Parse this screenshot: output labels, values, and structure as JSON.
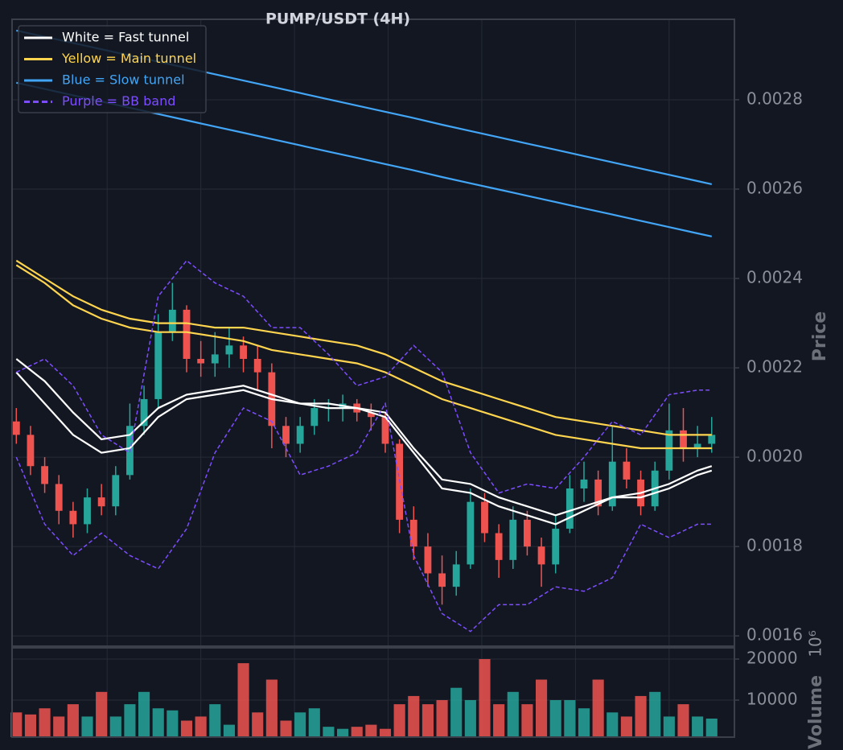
{
  "chart_data": {
    "type": "candlestick",
    "title": "PUMP/USDT (4H)",
    "ylabel": "Price",
    "grid": true,
    "legend": "upper left",
    "up_color": "#26a69a",
    "down_color": "#ef5350",
    "xlim": [
      -0.3,
      50.6
    ],
    "xticks": [
      6.4,
      13,
      19.6,
      26.2,
      32.8,
      39.4,
      46
    ],
    "ylim": [
      0.001577,
      0.00298
    ],
    "yticks": [
      0.0016,
      0.0018,
      {
        "value": 0.002,
        "label": "0.0020"
      },
      0.0022,
      0.0024,
      0.0026,
      0.0028
    ],
    "open": [
      0.00208,
      0.00205,
      0.00198,
      0.00194,
      0.00188,
      0.00185,
      0.00191,
      0.00189,
      0.00196,
      0.00207,
      0.00213,
      0.00228,
      0.00233,
      0.00222,
      0.00221,
      0.00223,
      0.00225,
      0.00222,
      0.00219,
      0.00207,
      0.00203,
      0.00207,
      0.00211,
      0.00211,
      0.00212,
      0.0021,
      0.00209,
      0.00203,
      0.00186,
      0.0018,
      0.00174,
      0.00171,
      0.00176,
      0.0019,
      0.00183,
      0.00177,
      0.00186,
      0.0018,
      0.00176,
      0.00184,
      0.00193,
      0.00195,
      0.00189,
      0.00199,
      0.00195,
      0.00189,
      0.00197,
      0.00206,
      0.00202,
      0.00203
    ],
    "high": [
      0.00211,
      0.00207,
      0.002,
      0.00196,
      0.0019,
      0.00193,
      0.00194,
      0.00198,
      0.00212,
      0.00216,
      0.00232,
      0.00239,
      0.00234,
      0.00226,
      0.00228,
      0.00229,
      0.00227,
      0.00225,
      0.00221,
      0.00209,
      0.00209,
      0.00213,
      0.00213,
      0.00214,
      0.00213,
      0.00212,
      0.0021,
      0.00204,
      0.00189,
      0.00183,
      0.00178,
      0.00179,
      0.00193,
      0.00192,
      0.00185,
      0.00189,
      0.00188,
      0.00182,
      0.00187,
      0.00196,
      0.00199,
      0.00197,
      0.00207,
      0.00202,
      0.00197,
      0.00199,
      0.00212,
      0.00211,
      0.00207,
      0.00209
    ],
    "low": [
      0.00203,
      0.00196,
      0.00192,
      0.00185,
      0.00182,
      0.00183,
      0.00187,
      0.00187,
      0.00195,
      0.00205,
      0.00211,
      0.00226,
      0.00219,
      0.00218,
      0.00218,
      0.0022,
      0.00219,
      0.00215,
      0.00202,
      0.002,
      0.00201,
      0.00205,
      0.00208,
      0.00208,
      0.00208,
      0.00206,
      0.00201,
      0.00183,
      0.00177,
      0.00171,
      0.00167,
      0.00169,
      0.00175,
      0.00181,
      0.00173,
      0.00175,
      0.00178,
      0.00171,
      0.00174,
      0.00183,
      0.0019,
      0.00187,
      0.00188,
      0.00193,
      0.00187,
      0.00188,
      0.00195,
      0.00199,
      0.002,
      0.00201
    ],
    "close": [
      0.00205,
      0.00198,
      0.00194,
      0.00188,
      0.00185,
      0.00191,
      0.00189,
      0.00196,
      0.00207,
      0.00213,
      0.00228,
      0.00233,
      0.00222,
      0.00221,
      0.00223,
      0.00225,
      0.00222,
      0.00219,
      0.00207,
      0.00203,
      0.00207,
      0.00211,
      0.00211,
      0.00212,
      0.0021,
      0.00209,
      0.00203,
      0.00186,
      0.0018,
      0.00174,
      0.00171,
      0.00176,
      0.0019,
      0.00183,
      0.00177,
      0.00186,
      0.0018,
      0.00176,
      0.00184,
      0.00193,
      0.00195,
      0.00189,
      0.00199,
      0.00195,
      0.00189,
      0.00197,
      0.00206,
      0.00202,
      0.00203,
      0.00205
    ],
    "line_x": [
      0,
      2,
      4,
      6,
      8,
      10,
      12,
      14,
      16,
      18,
      20,
      22,
      24,
      26,
      28,
      30,
      32,
      34,
      36,
      38,
      40,
      42,
      44,
      46,
      48,
      49
    ],
    "series": [
      {
        "name": "White = Fast tunnel",
        "color": "#ffffff",
        "dashed": false,
        "upper": [
          0.00222,
          0.00217,
          0.0021,
          0.00204,
          0.00205,
          0.00211,
          0.00214,
          0.00215,
          0.00216,
          0.00214,
          0.00212,
          0.00212,
          0.00211,
          0.0021,
          0.00202,
          0.00195,
          0.00194,
          0.00191,
          0.00189,
          0.00187,
          0.00189,
          0.00191,
          0.00192,
          0.00194,
          0.00197,
          0.00198
        ],
        "lower": [
          0.00219,
          0.00212,
          0.00205,
          0.00201,
          0.00202,
          0.00209,
          0.00213,
          0.00214,
          0.00215,
          0.00213,
          0.00212,
          0.00211,
          0.00211,
          0.00209,
          0.00201,
          0.00193,
          0.00192,
          0.00189,
          0.00187,
          0.00185,
          0.00188,
          0.00191,
          0.00191,
          0.00193,
          0.00196,
          0.00197
        ]
      },
      {
        "name": "Yellow = Main tunnel",
        "color": "#ffd54f",
        "dashed": false,
        "upper": [
          0.00244,
          0.0024,
          0.00236,
          0.00233,
          0.00231,
          0.0023,
          0.0023,
          0.00229,
          0.00229,
          0.00228,
          0.00227,
          0.00226,
          0.00225,
          0.00223,
          0.0022,
          0.00217,
          0.00215,
          0.00213,
          0.00211,
          0.00209,
          0.00208,
          0.00207,
          0.00206,
          0.00205,
          0.00205,
          0.00205
        ],
        "lower": [
          0.00243,
          0.00239,
          0.00234,
          0.00231,
          0.00229,
          0.00228,
          0.00228,
          0.00227,
          0.00226,
          0.00224,
          0.00223,
          0.00222,
          0.00221,
          0.00219,
          0.00216,
          0.00213,
          0.00211,
          0.00209,
          0.00207,
          0.00205,
          0.00204,
          0.00203,
          0.00202,
          0.00202,
          0.00202,
          0.00202
        ]
      },
      {
        "name": "Blue = Slow tunnel",
        "color": "#42a5f5",
        "dashed": false,
        "upper": [
          0.002955,
          0.002941,
          0.002927,
          0.002913,
          0.002899,
          0.002885,
          0.002871,
          0.002857,
          0.002843,
          0.002829,
          0.002815,
          0.002801,
          0.002787,
          0.002773,
          0.002759,
          0.002744,
          0.00273,
          0.002716,
          0.002702,
          0.002688,
          0.002674,
          0.00266,
          0.002646,
          0.002632,
          0.002618,
          0.002611
        ],
        "lower": [
          0.002838,
          0.002824,
          0.00281,
          0.002796,
          0.002782,
          0.002768,
          0.002754,
          0.00274,
          0.002726,
          0.002712,
          0.002698,
          0.002684,
          0.00267,
          0.002656,
          0.002642,
          0.002627,
          0.002613,
          0.002599,
          0.002585,
          0.002571,
          0.002557,
          0.002543,
          0.002529,
          0.002515,
          0.002501,
          0.002494
        ]
      },
      {
        "name": "Purple = BB band",
        "color": "#7c4dff",
        "dashed": true,
        "upper": [
          0.00219,
          0.00222,
          0.00216,
          0.00205,
          0.00201,
          0.00236,
          0.00244,
          0.00239,
          0.00236,
          0.00229,
          0.00229,
          0.00223,
          0.00216,
          0.00218,
          0.00225,
          0.00219,
          0.00201,
          0.00192,
          0.00194,
          0.00193,
          0.002,
          0.00208,
          0.00205,
          0.00214,
          0.00215,
          0.00215
        ],
        "lower": [
          0.002,
          0.00185,
          0.00178,
          0.00183,
          0.00178,
          0.00175,
          0.00184,
          0.00201,
          0.00211,
          0.00208,
          0.00196,
          0.00198,
          0.00201,
          0.00212,
          0.00178,
          0.00165,
          0.00161,
          0.00167,
          0.00167,
          0.00171,
          0.0017,
          0.00173,
          0.00185,
          0.00182,
          0.00185,
          0.00185
        ]
      }
    ],
    "volume": {
      "ylabel": "Volume",
      "offset_label": "10⁶",
      "ylim": [
        980,
        22750
      ],
      "yticks": [
        10000,
        20000
      ],
      "values": [
        7000,
        6500,
        8000,
        6000,
        9000,
        6000,
        12000,
        6000,
        9000,
        12000,
        8000,
        7500,
        5000,
        6000,
        9000,
        4000,
        19000,
        7000,
        15000,
        5000,
        7000,
        8000,
        3500,
        3000,
        3500,
        4000,
        3000,
        9000,
        11000,
        9000,
        10000,
        13000,
        10000,
        20000,
        9000,
        12000,
        9000,
        15000,
        10000,
        10000,
        8000,
        15000,
        7000,
        6000,
        11000,
        12000,
        6000,
        9000,
        6000,
        5500
      ]
    }
  }
}
